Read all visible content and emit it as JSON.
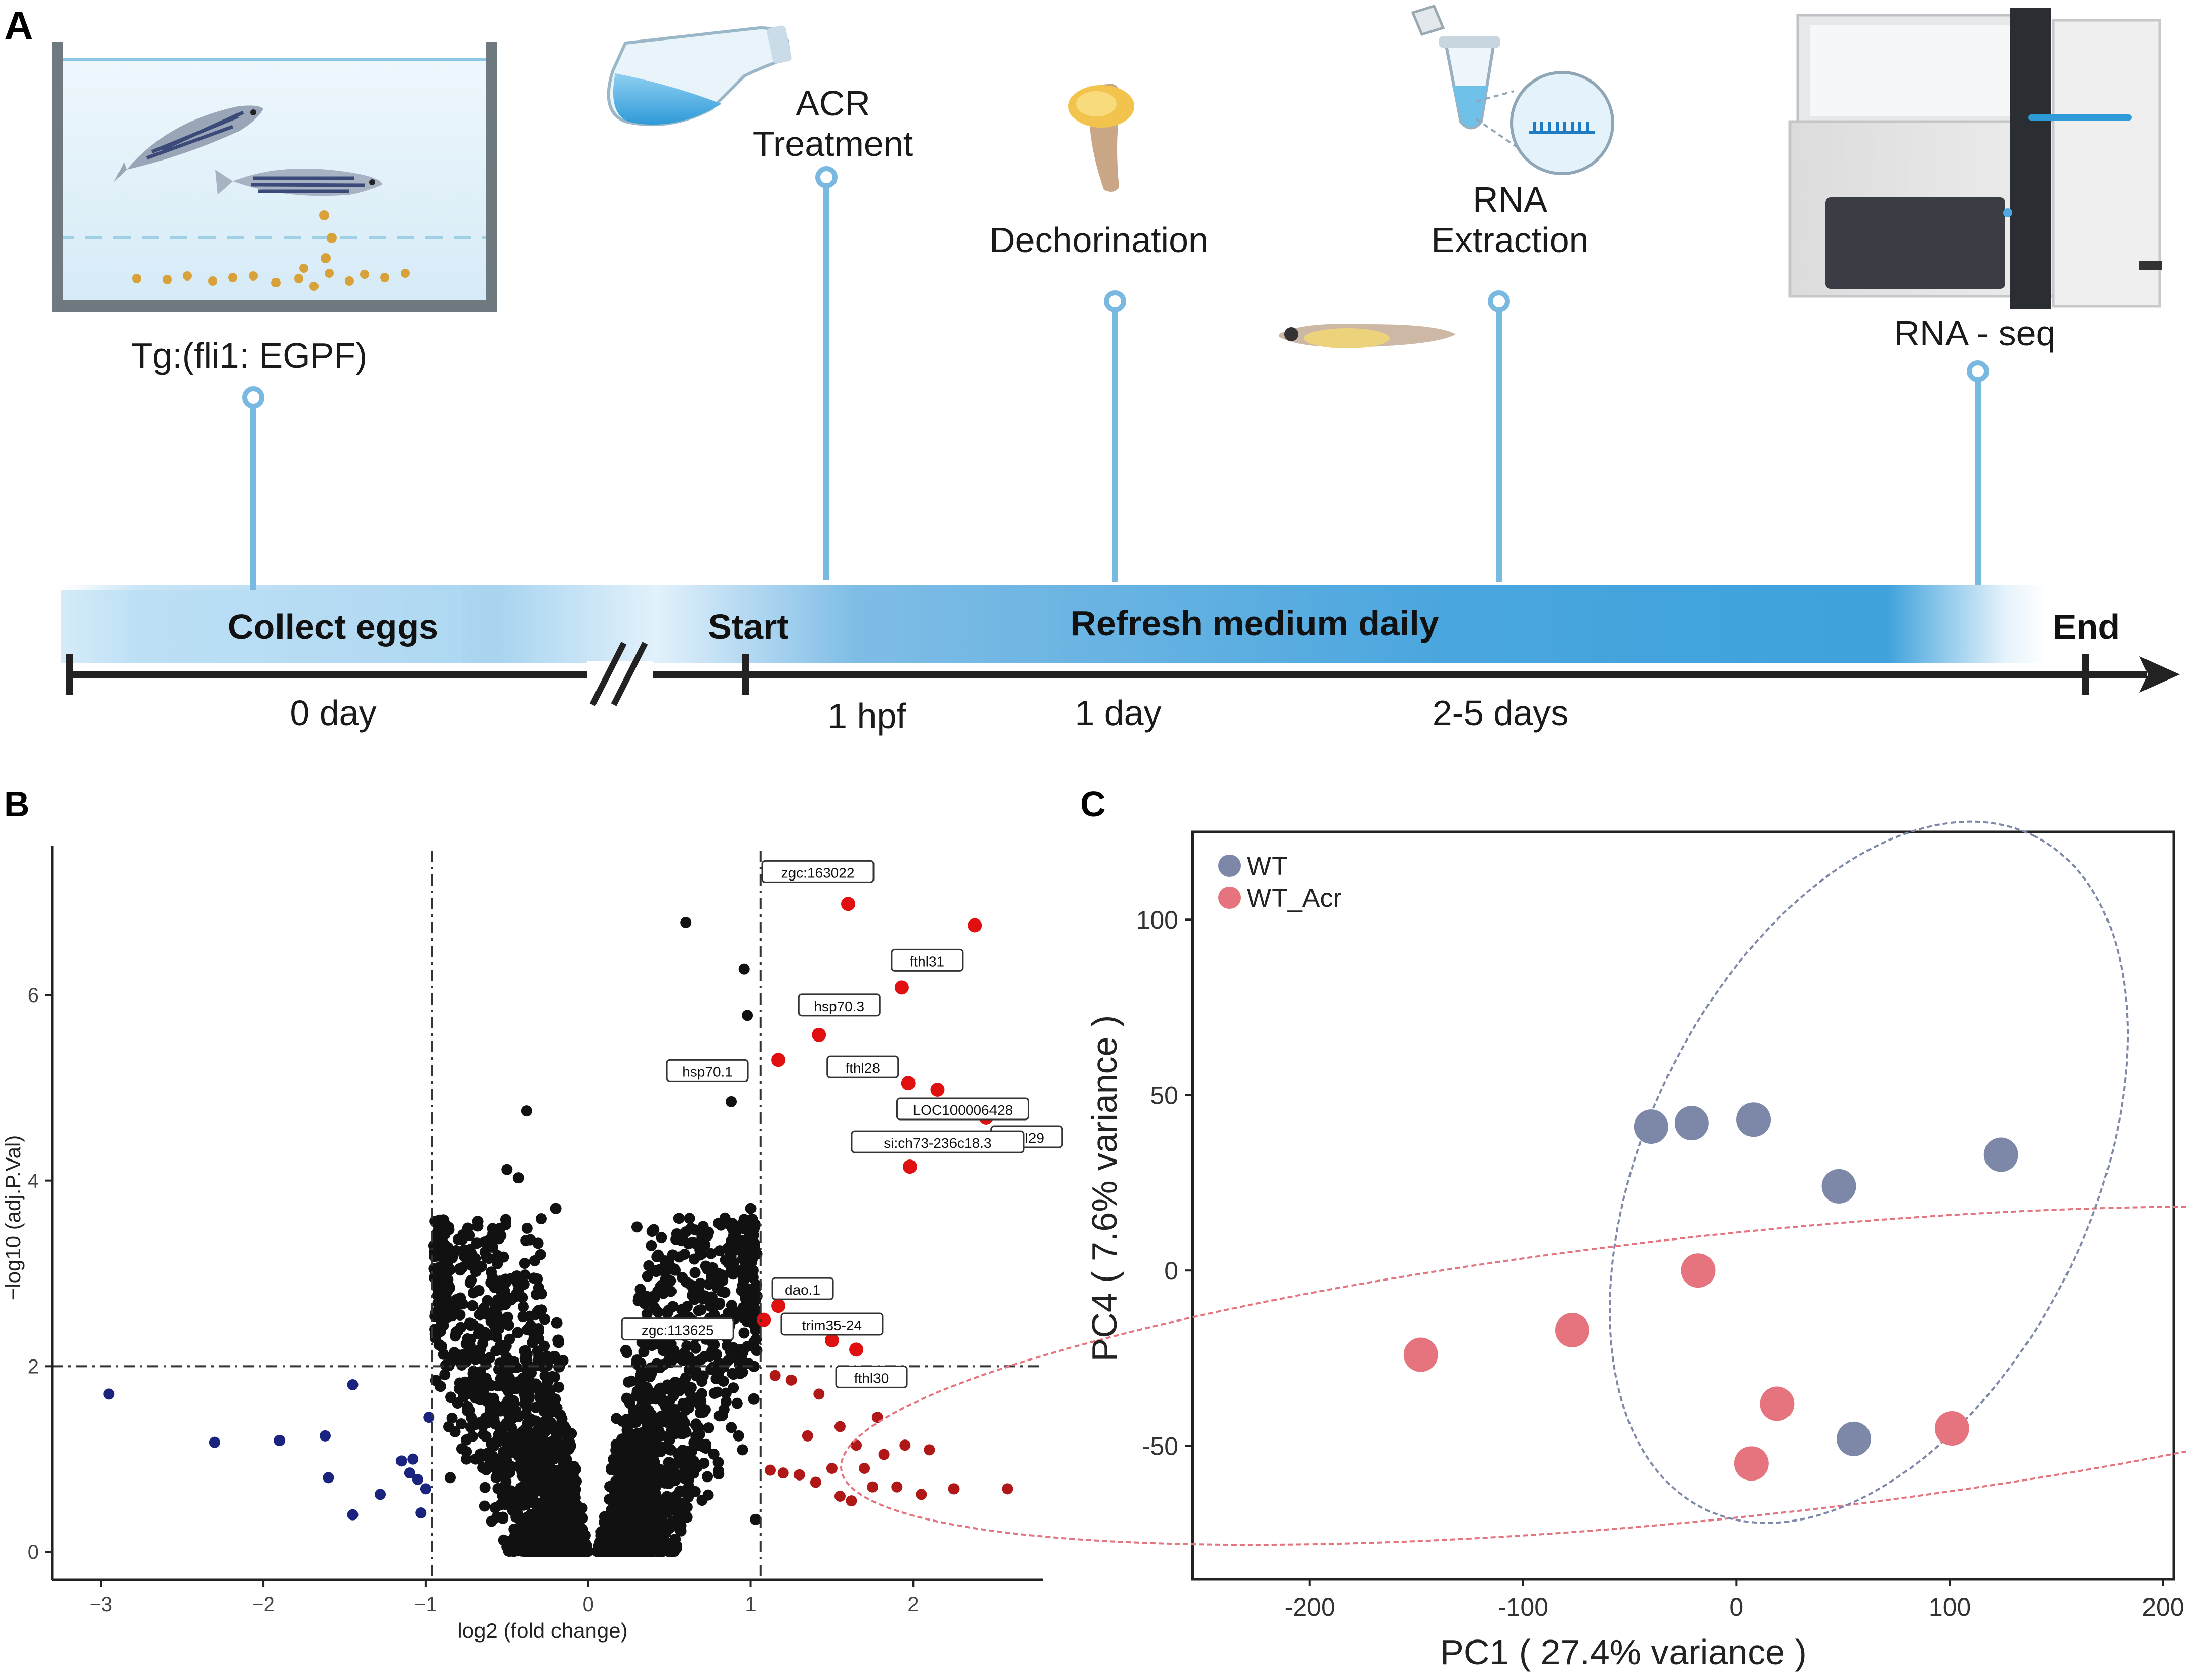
{
  "panel_labels": {
    "a": "A",
    "b": "B",
    "c": "C"
  },
  "timeline": {
    "tank_label": "Tg:(fli1: EGPF)",
    "acr_line1": "ACR",
    "acr_line2": "Treatment",
    "dechorination": "Dechorination",
    "rna_line1": "RNA",
    "rna_line2": "Extraction",
    "rnaseq": "RNA - seq",
    "collect_eggs": "Collect eggs",
    "start": "Start",
    "refresh": "Refresh medium daily",
    "end": "End",
    "ticks": [
      "0 day",
      "1 hpf",
      "1 day",
      "2-5 days"
    ]
  },
  "colors": {
    "timeline_blue": "#3fa2dc",
    "pin_blue": "#79b8e0",
    "up_red": "#e01010",
    "up_dark_red": "#b01818",
    "down_blue": "#1a237e",
    "wt": "#7d88a8",
    "wt_acr": "#e5747f"
  },
  "chart_data": [
    {
      "type": "scatter",
      "title": "",
      "xlabel": "log2 (fold change)",
      "ylabel": "−log10 (adj.P.Val)",
      "xlim": [
        -3.3,
        2.8
      ],
      "ylim": [
        -0.3,
        7.5
      ],
      "xticks": [
        "−3",
        "−2",
        "−1",
        "0",
        "1",
        "2"
      ],
      "yticks": [
        "0",
        "2",
        "4",
        "6"
      ],
      "thresholds": {
        "x": [
          -0.96,
          1.06
        ],
        "y": 2.0
      },
      "labeled_genes": [
        {
          "gene": "zgc:163022",
          "x": 1.6,
          "y": 6.98
        },
        {
          "gene": "fthl31",
          "x": 1.93,
          "y": 6.08
        },
        {
          "gene": "hsp70.3",
          "x": 1.42,
          "y": 5.57
        },
        {
          "gene": "hsp70.1",
          "x": 1.17,
          "y": 5.3
        },
        {
          "gene": "fthl28",
          "x": 1.97,
          "y": 5.05
        },
        {
          "gene": "LOC100006428",
          "x": 2.15,
          "y": 4.98
        },
        {
          "gene": "fthl29",
          "x": 2.45,
          "y": 4.68
        },
        {
          "gene": "si:ch73-236c18.3",
          "x": 1.98,
          "y": 4.15
        },
        {
          "gene": "dao.1",
          "x": 1.17,
          "y": 2.65
        },
        {
          "gene": "trim35-24",
          "x": 1.5,
          "y": 2.28
        },
        {
          "gene": "zgc:113625",
          "x": 1.08,
          "y": 2.5
        },
        {
          "gene": "fthl30",
          "x": 1.65,
          "y": 2.18
        }
      ],
      "other_sig_up": [
        {
          "x": 2.38,
          "y": 6.75
        }
      ],
      "down_regulated": [
        {
          "x": -2.95,
          "y": 1.7
        },
        {
          "x": -2.3,
          "y": 1.18
        },
        {
          "x": -1.9,
          "y": 1.2
        },
        {
          "x": -1.62,
          "y": 1.25
        },
        {
          "x": -1.6,
          "y": 0.8
        },
        {
          "x": -1.45,
          "y": 1.8
        },
        {
          "x": -1.45,
          "y": 0.4
        },
        {
          "x": -1.28,
          "y": 0.62
        },
        {
          "x": -1.15,
          "y": 0.98
        },
        {
          "x": -1.1,
          "y": 0.85
        },
        {
          "x": -1.08,
          "y": 1.0
        },
        {
          "x": -1.05,
          "y": 0.78
        },
        {
          "x": -1.03,
          "y": 0.42
        },
        {
          "x": -0.98,
          "y": 1.45
        },
        {
          "x": -1.0,
          "y": 0.68
        }
      ],
      "up_nonlabeled_sig": [
        {
          "x": 1.12,
          "y": 0.88
        },
        {
          "x": 1.2,
          "y": 0.85
        },
        {
          "x": 1.3,
          "y": 0.83
        },
        {
          "x": 1.4,
          "y": 0.75
        },
        {
          "x": 1.5,
          "y": 0.9
        },
        {
          "x": 1.55,
          "y": 0.6
        },
        {
          "x": 1.62,
          "y": 0.55
        },
        {
          "x": 1.7,
          "y": 0.9
        },
        {
          "x": 1.75,
          "y": 0.7
        },
        {
          "x": 1.82,
          "y": 1.05
        },
        {
          "x": 1.9,
          "y": 0.7
        },
        {
          "x": 1.95,
          "y": 1.15
        },
        {
          "x": 2.05,
          "y": 0.62
        },
        {
          "x": 2.25,
          "y": 0.68
        },
        {
          "x": 2.58,
          "y": 0.68
        },
        {
          "x": 1.15,
          "y": 1.9
        },
        {
          "x": 1.25,
          "y": 1.85
        },
        {
          "x": 1.42,
          "y": 1.7
        },
        {
          "x": 1.88,
          "y": 1.9
        },
        {
          "x": 1.55,
          "y": 1.35
        },
        {
          "x": 1.78,
          "y": 1.45
        },
        {
          "x": 1.35,
          "y": 1.25
        },
        {
          "x": 1.65,
          "y": 1.15
        },
        {
          "x": 2.1,
          "y": 1.1
        }
      ]
    },
    {
      "type": "scatter",
      "title": "",
      "xlabel": "PC1 ( 27.4% variance )",
      "ylabel": "PC4 ( 7.6% variance )",
      "xlim": [
        -255,
        205
      ],
      "ylim": [
        -88,
        125
      ],
      "xticks": [
        "-200",
        "-100",
        "0",
        "100",
        "200"
      ],
      "yticks": [
        "100",
        "50",
        "0",
        "-50"
      ],
      "legend": {
        "position": "top-left",
        "entries": [
          "WT",
          "WT_Acr"
        ]
      },
      "series": [
        {
          "name": "WT",
          "points": [
            [
              -40,
              41
            ],
            [
              -21,
              42
            ],
            [
              8,
              43
            ],
            [
              48,
              24
            ],
            [
              124,
              33
            ],
            [
              55,
              -48
            ]
          ]
        },
        {
          "name": "WT_Acr",
          "points": [
            [
              -18,
              0
            ],
            [
              -77,
              -17
            ],
            [
              -148,
              -24
            ],
            [
              19,
              -38
            ],
            [
              101,
              -45
            ],
            [
              7,
              -55
            ]
          ]
        }
      ]
    }
  ]
}
